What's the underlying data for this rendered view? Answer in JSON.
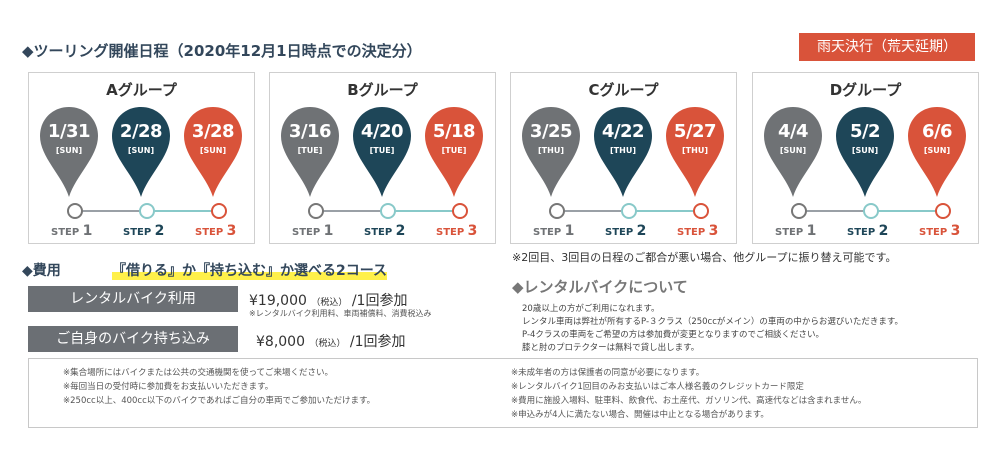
{
  "title": "◆ツーリング開催日程（2020年12月1日時点での決定分）",
  "rain_label": "雨天決行（荒天延期）",
  "colors": {
    "gray": "#6f7275",
    "navy": "#1e4658",
    "red": "#d9533a",
    "teal": "#88c9c9"
  },
  "groups": [
    {
      "name": "Aグループ",
      "dates": [
        {
          "date": "1/31",
          "dow": "[SUN]"
        },
        {
          "date": "2/28",
          "dow": "[SUN]"
        },
        {
          "date": "3/28",
          "dow": "[SUN]"
        }
      ]
    },
    {
      "name": "Bグループ",
      "dates": [
        {
          "date": "3/16",
          "dow": "[TUE]"
        },
        {
          "date": "4/20",
          "dow": "[TUE]"
        },
        {
          "date": "5/18",
          "dow": "[TUE]"
        }
      ]
    },
    {
      "name": "Cグループ",
      "dates": [
        {
          "date": "3/25",
          "dow": "[THU]"
        },
        {
          "date": "4/22",
          "dow": "[THU]"
        },
        {
          "date": "5/27",
          "dow": "[THU]"
        }
      ]
    },
    {
      "name": "Dグループ",
      "dates": [
        {
          "date": "4/4",
          "dow": "[SUN]"
        },
        {
          "date": "5/2",
          "dow": "[SUN]"
        },
        {
          "date": "6/6",
          "dow": "[SUN]"
        }
      ]
    }
  ],
  "steps": [
    {
      "label": "STEP",
      "num": "1"
    },
    {
      "label": "STEP",
      "num": "2"
    },
    {
      "label": "STEP",
      "num": "3"
    }
  ],
  "reschedule_note": "※2回目、3回目の日程のご都合が悪い場合、他グループに振り替え可能です。",
  "fees": {
    "heading": "◆費用",
    "highlight": "『借りる』か『持ち込む』か選べる2コース",
    "rental": {
      "label": "レンタルバイク利用",
      "price": "¥19,000",
      "tax": "（税込）",
      "per": "/1回参加",
      "note": "※レンタルバイク利用料、車両補償料、消費税込み"
    },
    "own": {
      "label": "ご自身のバイク持ち込み",
      "price": "¥8,000",
      "tax": "（税込）",
      "per": "/1回参加"
    }
  },
  "rental_info": {
    "heading": "◆レンタルバイクについて",
    "lines": [
      "20歳以上の方がご利用になれます。",
      "レンタル車両は弊社が所有するP-３クラス（250ccがメイン）の車両の中からお選びいただきます。",
      "P-4クラスの車両をご希望の方は参加費が変更となりますのでご相談ください。",
      "膝と肘のプロテクターは無料で貸し出します。"
    ]
  },
  "notes_left": [
    "※集合場所にはバイクまたは公共の交通機関を使ってご来場ください。",
    "※毎回当日の受付時に参加費をお支払いいただきます。",
    "※250cc以上、400cc以下のバイクであればご自分の車両でご参加いただけます。"
  ],
  "notes_right": [
    "※未成年者の方は保護者の同意が必要になります。",
    "※レンタルバイク1回目のみお支払いはご本人様名義のクレジットカード限定",
    "※費用に施設入場料、駐車料、飲食代、お土産代、ガソリン代、高速代などは含まれません。",
    "※申込みが4人に満たない場合、開催は中止となる場合があります。"
  ]
}
